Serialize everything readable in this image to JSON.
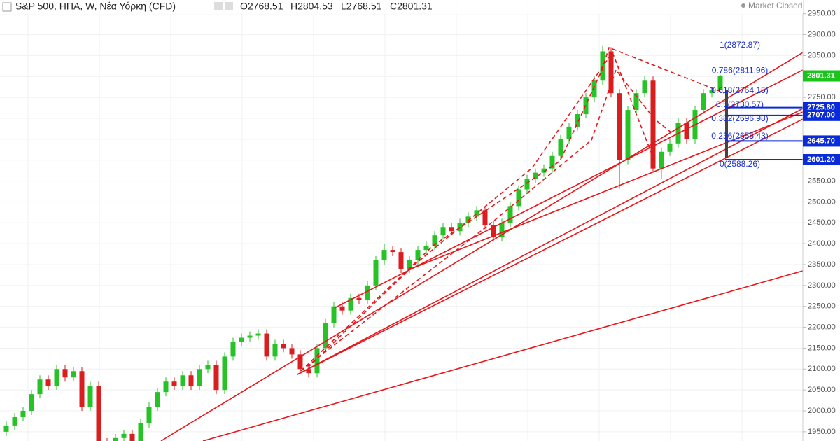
{
  "chart_data": {
    "type": "candlestick",
    "title": "S&P 500, ΗΠΑ, W, Νέα Υόρκη (CFD)",
    "ohlc_labels": [
      "O2768.51",
      "H2804.53",
      "L2768.51",
      "C2801.31"
    ],
    "status": "Market Closed",
    "up_color": "#26c226",
    "down_color": "#d81e1e",
    "open": [
      1950,
      1965,
      1985,
      2000,
      2040,
      2075,
      2060,
      2100,
      2080,
      2095,
      2010,
      2060,
      1925,
      1890,
      1935,
      1945,
      1925,
      1970,
      2010,
      2045,
      2070,
      2060,
      2085,
      2060,
      2100,
      2110,
      2050,
      2130,
      2165,
      2175,
      2180,
      2185,
      2130,
      2160,
      2150,
      2135,
      2100,
      2090,
      2150,
      2210,
      2250,
      2240,
      2270,
      2265,
      2300,
      2360,
      2385,
      2380,
      2340,
      2360,
      2385,
      2395,
      2420,
      2440,
      2430,
      2450,
      2465,
      2480,
      2445,
      2415,
      2450,
      2490,
      2530,
      2555,
      2570,
      2580,
      2610,
      2650,
      2680,
      2710,
      2750,
      2790,
      2860,
      2760,
      2600,
      2720,
      2760,
      2790,
      2580,
      2620,
      2640,
      2690,
      2650,
      2720,
      2760,
      2768.51
    ],
    "high": [
      1975,
      1995,
      2010,
      2050,
      2085,
      2085,
      2110,
      2110,
      2105,
      2105,
      2070,
      2070,
      1935,
      1945,
      1955,
      1955,
      1980,
      2020,
      2055,
      2080,
      2080,
      2095,
      2095,
      2110,
      2120,
      2120,
      2140,
      2175,
      2185,
      2190,
      2195,
      2195,
      2170,
      2170,
      2160,
      2145,
      2110,
      2160,
      2220,
      2260,
      2260,
      2280,
      2280,
      2310,
      2370,
      2400,
      2395,
      2390,
      2370,
      2395,
      2405,
      2430,
      2450,
      2450,
      2460,
      2475,
      2490,
      2490,
      2455,
      2460,
      2500,
      2540,
      2565,
      2580,
      2590,
      2620,
      2660,
      2690,
      2720,
      2760,
      2800,
      2872.87,
      2870,
      2770,
      2730,
      2770,
      2800,
      2800,
      2630,
      2650,
      2700,
      2700,
      2730,
      2770,
      2775,
      2804.53
    ],
    "low": [
      1940,
      1955,
      1975,
      1990,
      2030,
      2050,
      2050,
      2070,
      2070,
      2000,
      2000,
      1915,
      1880,
      1880,
      1925,
      1915,
      1915,
      1960,
      2000,
      2035,
      2050,
      2050,
      2050,
      2050,
      2090,
      2040,
      2040,
      2120,
      2155,
      2165,
      2170,
      2120,
      2120,
      2140,
      2125,
      2090,
      2080,
      2080,
      2140,
      2200,
      2230,
      2230,
      2255,
      2255,
      2290,
      2350,
      2370,
      2330,
      2330,
      2350,
      2375,
      2385,
      2410,
      2420,
      2420,
      2440,
      2455,
      2435,
      2405,
      2405,
      2440,
      2480,
      2520,
      2545,
      2560,
      2570,
      2600,
      2640,
      2670,
      2700,
      2740,
      2780,
      2750,
      2532,
      2590,
      2710,
      2750,
      2570,
      2555,
      2610,
      2630,
      2640,
      2640,
      2710,
      2750,
      2768.51
    ],
    "close": [
      1965,
      1985,
      2000,
      2040,
      2075,
      2060,
      2100,
      2080,
      2095,
      2010,
      2060,
      1925,
      1890,
      1935,
      1945,
      1925,
      1970,
      2010,
      2045,
      2070,
      2060,
      2085,
      2060,
      2100,
      2110,
      2050,
      2130,
      2165,
      2175,
      2180,
      2185,
      2130,
      2160,
      2150,
      2135,
      2100,
      2090,
      2150,
      2210,
      2250,
      2240,
      2270,
      2265,
      2300,
      2360,
      2385,
      2380,
      2340,
      2360,
      2385,
      2395,
      2420,
      2440,
      2430,
      2450,
      2465,
      2480,
      2445,
      2415,
      2450,
      2490,
      2530,
      2555,
      2570,
      2580,
      2610,
      2650,
      2680,
      2710,
      2750,
      2790,
      2860,
      2760,
      2600,
      2720,
      2760,
      2790,
      2580,
      2620,
      2640,
      2690,
      2650,
      2720,
      2760,
      2768.51,
      2801.31
    ],
    "ylim": [
      1928,
      2983
    ],
    "yticks": [
      {
        "value": 1950,
        "label": "1950.00"
      },
      {
        "value": 2000,
        "label": "2000.00"
      },
      {
        "value": 2050,
        "label": "2050.00"
      },
      {
        "value": 2100,
        "label": "2100.00"
      },
      {
        "value": 2150,
        "label": "2150.00"
      },
      {
        "value": 2200,
        "label": "2200.00"
      },
      {
        "value": 2250,
        "label": "2250.00"
      },
      {
        "value": 2300,
        "label": "2300.00"
      },
      {
        "value": 2350,
        "label": "2350.00"
      },
      {
        "value": 2400,
        "label": "2400.00"
      },
      {
        "value": 2450,
        "label": "2450.00"
      },
      {
        "value": 2500,
        "label": "2500.00"
      },
      {
        "value": 2550,
        "label": "2550.00"
      },
      {
        "value": 2600,
        "label": "2600.00"
      },
      {
        "value": 2650,
        "label": "2650.00"
      },
      {
        "value": 2700,
        "label": "2700.00"
      },
      {
        "value": 2750,
        "label": "2750.00"
      },
      {
        "value": 2800,
        "label": "2800.00"
      },
      {
        "value": 2850,
        "label": "2850.00"
      },
      {
        "value": 2900,
        "label": "2900.00"
      },
      {
        "value": 2950,
        "label": "2950.00"
      }
    ],
    "grid": true,
    "fib_levels": [
      {
        "value": 2872.87,
        "label": "1(2872.87)"
      },
      {
        "value": 2811.96,
        "label": "0.786(2811.96)"
      },
      {
        "value": 2764.15,
        "label": "0.618(2764.15)"
      },
      {
        "value": 2730.57,
        "label": "0.5(2730.57)"
      },
      {
        "value": 2696.98,
        "label": "0.382(2696.98)"
      },
      {
        "value": 2655.43,
        "label": "0.236(2655.43)"
      },
      {
        "value": 2588.26,
        "label": "0(2588.26)"
      }
    ],
    "price_tags": [
      {
        "value": 2801.31,
        "label": "2801.31",
        "color": "#1bc41b"
      },
      {
        "value": 2725.8,
        "label": "2725.80",
        "color": "#0a2bd8"
      },
      {
        "value": 2707,
        "label": "2707.00",
        "color": "#0a2bd8"
      },
      {
        "value": 2645.7,
        "label": "2645.70",
        "color": "#0a2bd8"
      },
      {
        "value": 2601.2,
        "label": "2601.20",
        "color": "#0a2bd8"
      }
    ]
  }
}
